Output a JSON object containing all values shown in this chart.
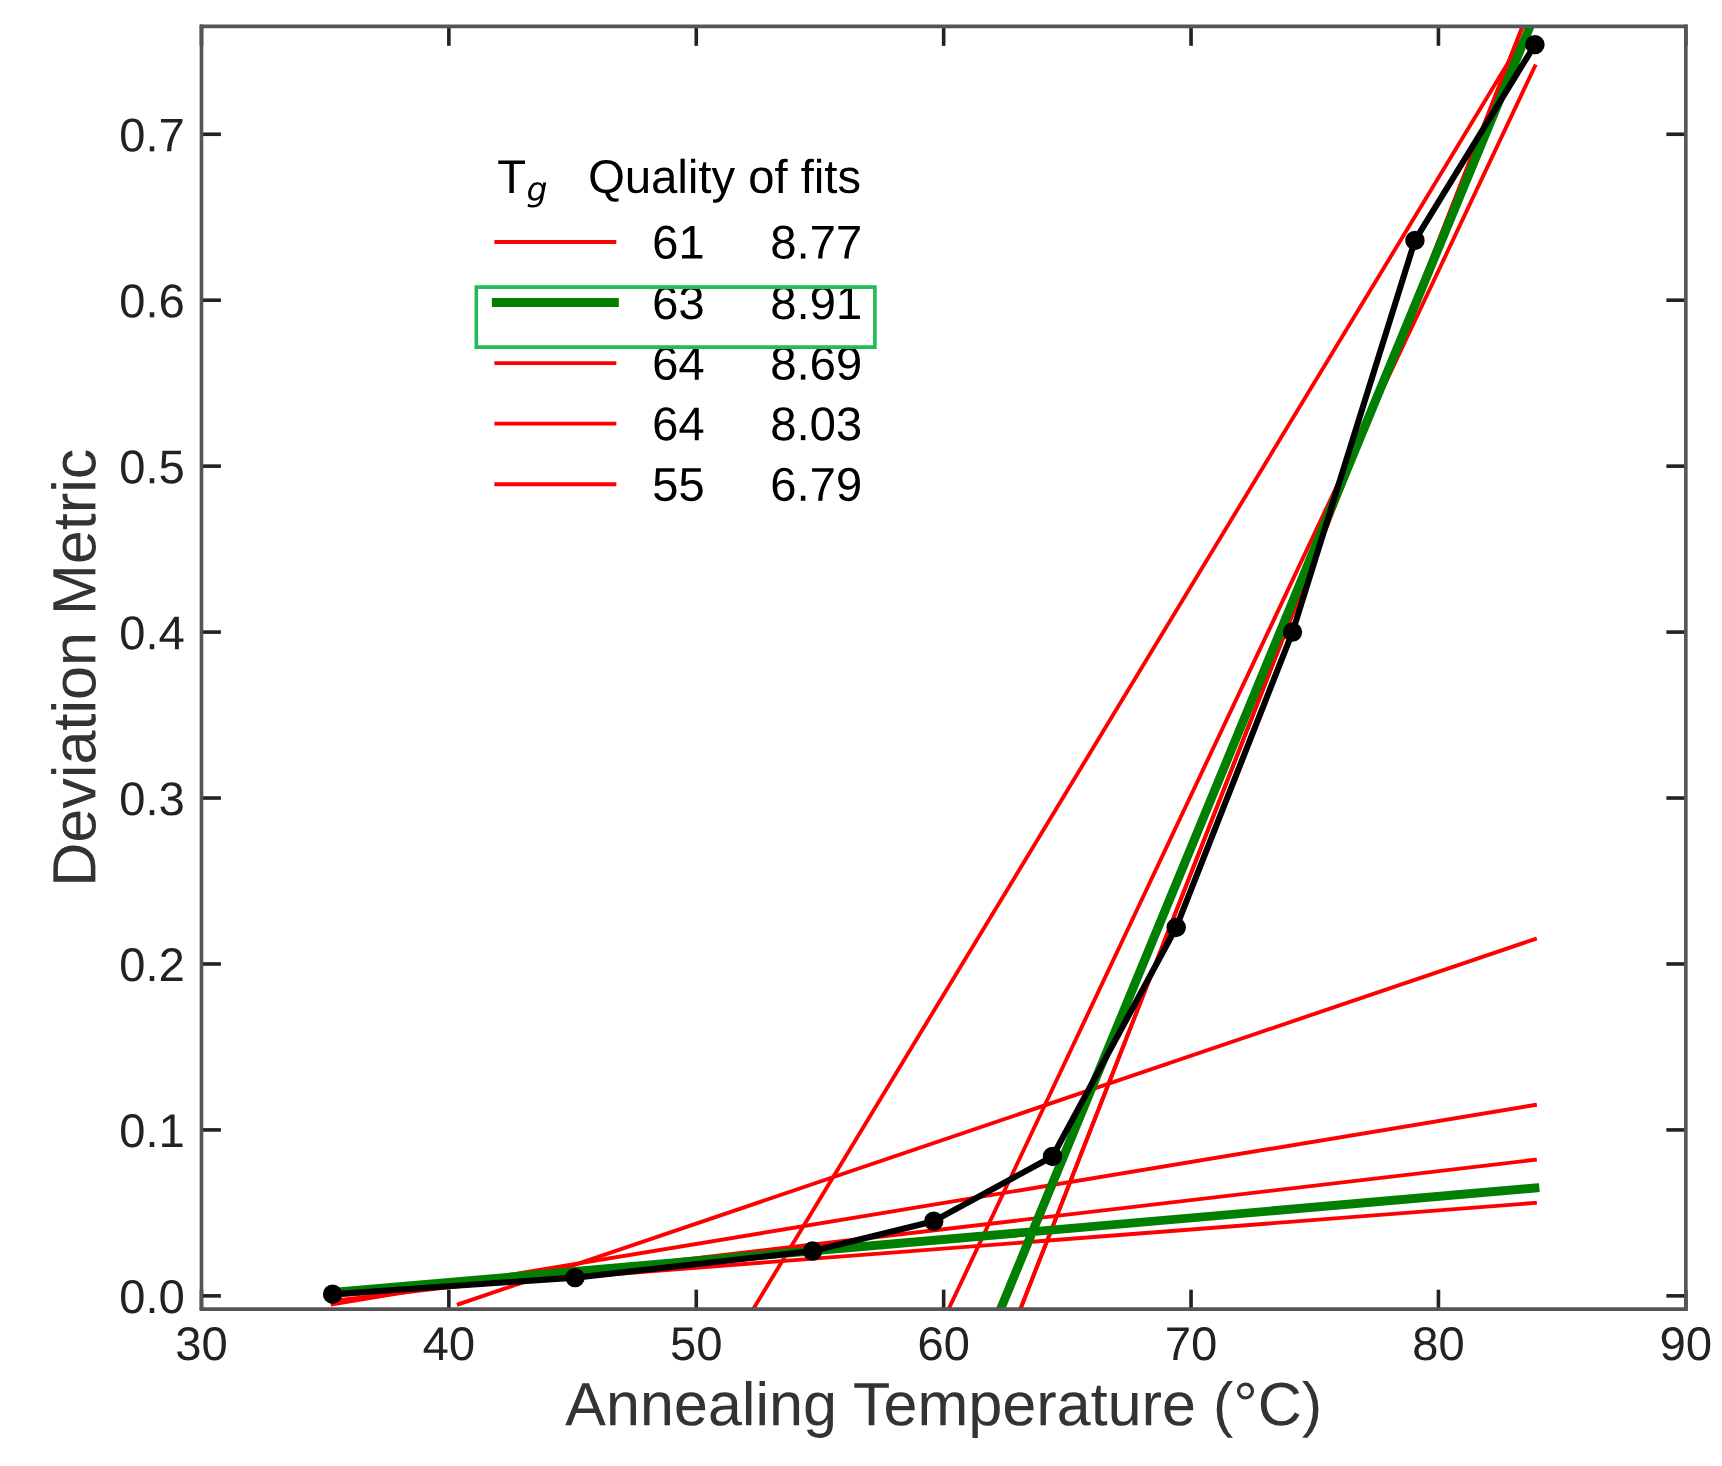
{
  "chart_data": {
    "type": "line",
    "xlabel": "Annealing Temperature (°C)",
    "ylabel": "Deviation Metric",
    "legend_title": "T$_{g}$   Quality of fits",
    "xlim": [
      30,
      90
    ],
    "ylim": [
      -0.008,
      0.765
    ],
    "xticks": [
      30,
      40,
      50,
      60,
      70,
      80,
      90
    ],
    "yticks": [
      {
        "value": 0,
        "label": "0.0"
      },
      0.1,
      0.2,
      0.3,
      0.4,
      0.5,
      0.6,
      0.7
    ],
    "grid": false,
    "legend": "top left",
    "series": [
      {
        "color": "#000000",
        "marker": "circle",
        "x": [
          35.3,
          45.1,
          54.7,
          59.6,
          64.4,
          69.4,
          74.1,
          79.05,
          83.9
        ],
        "values": [
          0.001,
          0.011,
          0.027,
          0.045,
          0.084,
          0.222,
          0.4,
          0.636,
          0.754
        ]
      },
      {
        "name": "61     8.77",
        "color": "#ff0000",
        "x": [
          35.3,
          83.9,
          null,
          60.2,
          83.9
        ],
        "values": [
          -0.005,
          0.115,
          null,
          -0.008,
          0.741
        ]
      },
      {
        "name": "63     8.91",
        "color": "#007f00",
        "x": [
          35.3,
          83.9,
          null,
          62.3,
          83.7
        ],
        "values": [
          0.002,
          0.065,
          null,
          -0.008,
          0.765
        ]
      },
      {
        "name": "64     8.69",
        "color": "#ff0000",
        "x": [
          35.3,
          83.9,
          null,
          63.1,
          83.4
        ],
        "values": [
          -0.003,
          0.082,
          null,
          -0.008,
          0.765
        ]
      },
      {
        "name": "64     8.03",
        "color": "#ff0000",
        "x": [
          35.3,
          83.9,
          null,
          63.1,
          83.4
        ],
        "values": [
          0.0,
          0.056,
          null,
          -0.008,
          0.765
        ]
      },
      {
        "name": "55     6.79",
        "color": "#ff0000",
        "x": [
          40.4,
          83.9,
          null,
          52.3,
          83.3
        ],
        "values": [
          -0.005,
          0.215,
          null,
          -0.008,
          0.755
        ]
      }
    ]
  }
}
